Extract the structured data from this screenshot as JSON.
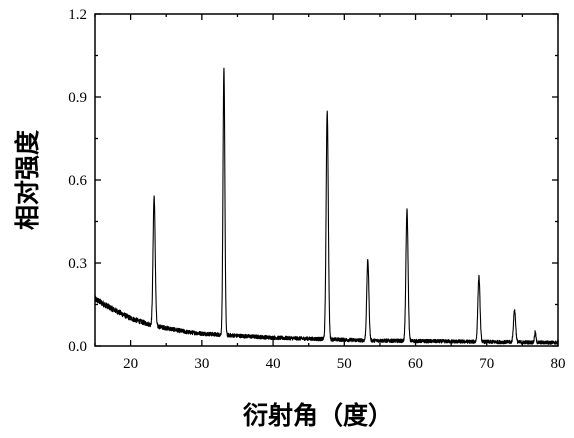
{
  "chart_data": {
    "type": "line",
    "title": "",
    "xlabel": "衍射角（度）",
    "ylabel": "相对强度",
    "xlim": [
      15,
      80
    ],
    "ylim": [
      0,
      1.2
    ],
    "x_ticks": [
      20,
      30,
      40,
      50,
      60,
      70,
      80
    ],
    "x_tick_labels": [
      "20",
      "30",
      "40",
      "50",
      "60",
      "70",
      "80"
    ],
    "y_ticks": [
      0.0,
      0.3,
      0.6,
      0.9,
      1.2
    ],
    "y_tick_labels": [
      "0.0",
      "0.3",
      "0.6",
      "0.9",
      "1.2"
    ],
    "grid": false,
    "legend": "none",
    "line_color": "#000000",
    "series": [
      {
        "baseline": [
          [
            15,
            0.17
          ],
          [
            17,
            0.14
          ],
          [
            20,
            0.1
          ],
          [
            23,
            0.075
          ],
          [
            25,
            0.065
          ],
          [
            28,
            0.05
          ],
          [
            30,
            0.045
          ],
          [
            33,
            0.04
          ],
          [
            40,
            0.03
          ],
          [
            47,
            0.025
          ],
          [
            53,
            0.02
          ],
          [
            60,
            0.018
          ],
          [
            70,
            0.015
          ],
          [
            80,
            0.012
          ]
        ],
        "peaks": [
          {
            "x": 23.3,
            "y": 0.54,
            "width": 0.15
          },
          {
            "x": 33.1,
            "y": 1.0,
            "width": 0.13
          },
          {
            "x": 47.6,
            "y": 0.85,
            "width": 0.15
          },
          {
            "x": 53.3,
            "y": 0.31,
            "width": 0.15
          },
          {
            "x": 58.8,
            "y": 0.49,
            "width": 0.15
          },
          {
            "x": 68.9,
            "y": 0.25,
            "width": 0.15
          },
          {
            "x": 73.9,
            "y": 0.13,
            "width": 0.15
          },
          {
            "x": 76.8,
            "y": 0.05,
            "width": 0.1
          }
        ]
      }
    ]
  }
}
